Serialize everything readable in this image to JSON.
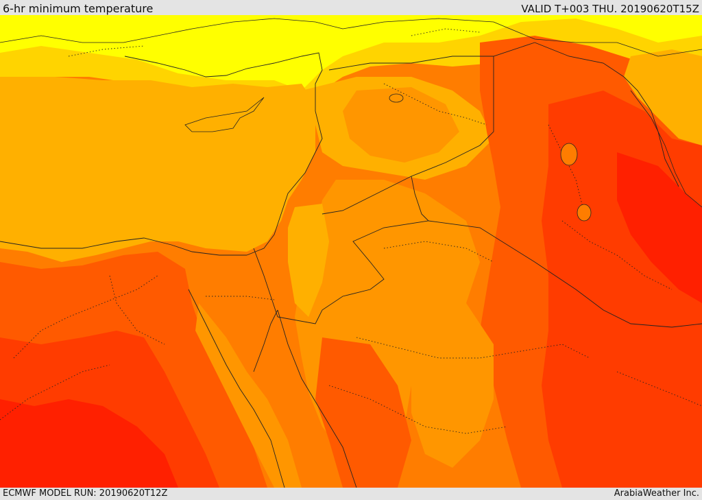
{
  "header": {
    "title": "6-hr minimum temperature",
    "valid": "VALID T+003 THU. 20190620T15Z"
  },
  "footer": {
    "model_run": "ECMWF MODEL RUN: 20190620T12Z",
    "credit": "ArabiaWeather Inc."
  },
  "palette": {
    "yellow": "#ffff00",
    "light_gold": "#ffd400",
    "gold": "#ffb000",
    "amber": "#ff9600",
    "orange": "#ff7d00",
    "dark_orange": "#ff5a00",
    "red_orange": "#ff3c00",
    "red": "#ff2000",
    "boundary_line": "#222222"
  }
}
